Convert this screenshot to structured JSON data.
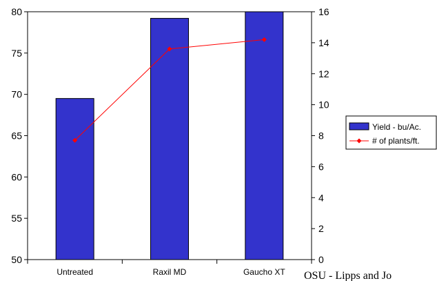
{
  "chart_data": {
    "type": "bar",
    "categories": [
      "Untreated",
      "Raxil MD",
      "Gaucho XT"
    ],
    "series": [
      {
        "name": "Yield - bu/Ac.",
        "type": "bar",
        "axis": "left",
        "values": [
          69.5,
          79.2,
          80.0
        ],
        "color": "#3333CC"
      },
      {
        "name": "# of plants/ft.",
        "type": "line",
        "axis": "right",
        "values": [
          7.7,
          13.6,
          14.2
        ],
        "color": "#FF0000"
      }
    ],
    "y_left": {
      "min": 50,
      "max": 80,
      "ticks": [
        50,
        55,
        60,
        65,
        70,
        75,
        80
      ]
    },
    "y_right": {
      "min": 0,
      "max": 16,
      "ticks": [
        0,
        2,
        4,
        6,
        8,
        10,
        12,
        14,
        16
      ]
    },
    "title": "",
    "xlabel": "",
    "ylabel": "",
    "grid": false,
    "legend_position": "right"
  },
  "credit_text": "OSU - Lipps and Jo"
}
